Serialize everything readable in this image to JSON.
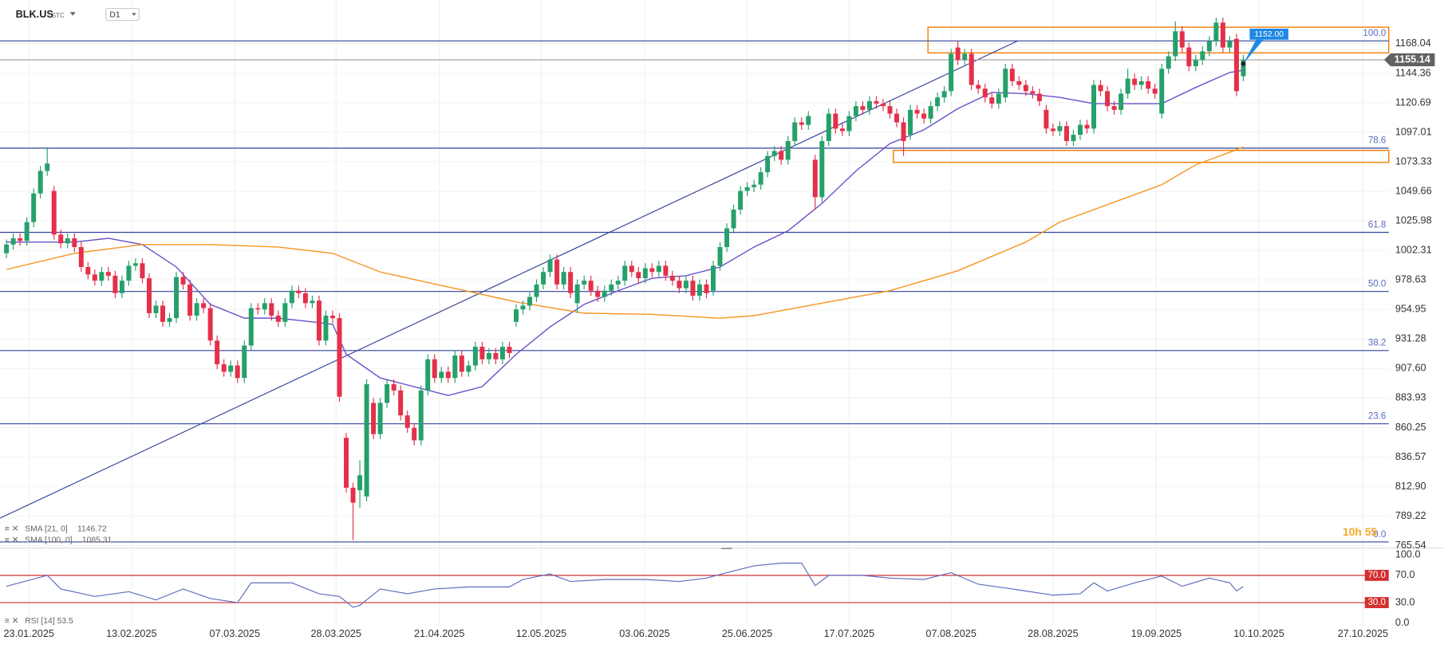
{
  "header": {
    "ticker": "BLK.US",
    "market": "STC",
    "interval": "D1",
    "countdown": "10h 55"
  },
  "chart_data": {
    "type": "candlestick",
    "xlim": [
      -0.95,
      203.4
    ],
    "xticks": [
      {
        "value": 3.3,
        "label": "23.01.2025"
      },
      {
        "value": 18.4,
        "label": "13.02.2025"
      },
      {
        "value": 33.6,
        "label": "07.03.2025"
      },
      {
        "value": 48.5,
        "label": "28.03.2025"
      },
      {
        "value": 63.7,
        "label": "21.04.2025"
      },
      {
        "value": 78.7,
        "label": "12.05.2025"
      },
      {
        "value": 93.9,
        "label": "03.06.2025"
      },
      {
        "value": 109,
        "label": "25.06.2025"
      },
      {
        "value": 124,
        "label": "17.07.2025"
      },
      {
        "value": 139,
        "label": "07.08.2025"
      },
      {
        "value": 154,
        "label": "28.08.2025"
      },
      {
        "value": 169.2,
        "label": "19.09.2025"
      },
      {
        "value": 184.3,
        "label": "10.10.2025"
      },
      {
        "value": 199.6,
        "label": "27.10.2025"
      }
    ],
    "ylim": [
      764,
      1203
    ],
    "yticks": [
      1168.04,
      1144.36,
      1120.69,
      1097.01,
      1073.33,
      1049.66,
      1025.98,
      1002.31,
      978.63,
      954.95,
      931.28,
      {
        "value": 907.6,
        "label": "907.60"
      },
      883.93,
      860.25,
      836.57,
      {
        "value": 812.9,
        "label": "812.90"
      },
      789.22,
      765.54
    ],
    "grid": true,
    "up_color": "#26a06b",
    "down_color": "#e5304a",
    "ohlc": [
      [
        1000,
        1011,
        996,
        1007
      ],
      [
        1007,
        1016,
        1003,
        1012
      ],
      [
        1012,
        1016,
        1006,
        1010
      ],
      [
        1010,
        1029,
        1006,
        1025
      ],
      [
        1025,
        1052,
        1021,
        1048
      ],
      [
        1048,
        1070,
        1044,
        1066
      ],
      [
        1066,
        1085,
        1062,
        1072
      ],
      [
        1050,
        1054,
        1011,
        1015
      ],
      [
        1015,
        1019,
        1004,
        1008
      ],
      [
        1008,
        1016,
        1004,
        1012
      ],
      [
        1012,
        1016,
        1001,
        1005
      ],
      [
        1005,
        1009,
        985,
        989
      ],
      [
        989,
        993,
        979,
        983
      ],
      [
        983,
        987,
        974,
        978
      ],
      [
        978,
        989,
        974,
        985
      ],
      [
        985,
        989,
        978,
        982
      ],
      [
        982,
        986,
        964,
        968
      ],
      [
        968,
        982,
        964,
        978
      ],
      [
        978,
        994,
        974,
        990
      ],
      [
        990,
        996,
        986,
        992
      ],
      [
        992,
        996,
        976,
        980
      ],
      [
        980,
        984,
        948,
        952
      ],
      [
        952,
        962,
        948,
        958
      ],
      [
        958,
        962,
        941,
        945
      ],
      [
        945,
        952,
        941,
        948
      ],
      [
        948,
        985,
        944,
        981
      ],
      [
        981,
        985,
        971,
        975
      ],
      [
        975,
        979,
        946,
        950
      ],
      [
        950,
        964,
        946,
        960
      ],
      [
        960,
        964,
        952,
        956
      ],
      [
        956,
        960,
        926,
        930
      ],
      [
        930,
        934,
        907,
        911
      ],
      [
        911,
        915,
        901,
        905
      ],
      [
        905,
        914,
        901,
        910
      ],
      [
        910,
        914,
        896,
        900
      ],
      [
        900,
        930,
        896,
        926
      ],
      [
        926,
        960,
        922,
        956
      ],
      [
        956,
        960,
        951,
        955
      ],
      [
        955,
        964,
        951,
        960
      ],
      [
        960,
        964,
        946,
        950
      ],
      [
        950,
        954,
        941,
        945
      ],
      [
        945,
        964,
        941,
        960
      ],
      [
        960,
        974,
        956,
        970
      ],
      [
        970,
        974,
        964,
        968
      ],
      [
        968,
        972,
        956,
        960
      ],
      [
        960,
        966,
        956,
        962
      ],
      [
        962,
        966,
        926,
        930
      ],
      [
        930,
        954,
        926,
        950
      ],
      [
        950,
        954,
        944,
        948
      ],
      [
        948,
        952,
        881,
        885
      ],
      [
        852,
        856,
        808,
        812
      ],
      [
        812,
        816,
        770,
        800
      ],
      [
        810,
        834,
        796,
        822
      ],
      [
        805,
        899,
        801,
        895
      ],
      [
        880,
        884,
        851,
        855
      ],
      [
        855,
        884,
        851,
        880
      ],
      [
        880,
        899,
        876,
        895
      ],
      [
        895,
        899,
        886,
        890
      ],
      [
        890,
        894,
        866,
        870
      ],
      [
        870,
        874,
        856,
        860
      ],
      [
        860,
        864,
        846,
        850
      ],
      [
        850,
        894,
        846,
        890
      ],
      [
        890,
        919,
        886,
        915
      ],
      [
        915,
        919,
        896,
        900
      ],
      [
        900,
        909,
        896,
        905
      ],
      [
        905,
        909,
        896,
        900
      ],
      [
        900,
        922,
        896,
        918
      ],
      [
        918,
        922,
        901,
        905
      ],
      [
        905,
        914,
        901,
        910
      ],
      [
        910,
        929,
        906,
        925
      ],
      [
        925,
        929,
        911,
        915
      ],
      [
        915,
        924,
        911,
        920
      ],
      [
        920,
        924,
        911,
        915
      ],
      [
        915,
        929,
        911,
        925
      ],
      [
        925,
        929,
        916,
        920
      ],
      [
        945,
        959,
        941,
        955
      ],
      [
        955,
        962,
        951,
        958
      ],
      [
        958,
        969,
        954,
        965
      ],
      [
        965,
        979,
        961,
        975
      ],
      [
        975,
        989,
        971,
        985
      ],
      [
        985,
        999,
        981,
        995
      ],
      [
        995,
        999,
        971,
        975
      ],
      [
        975,
        989,
        971,
        985
      ],
      [
        985,
        989,
        964,
        968
      ],
      [
        960,
        979,
        952,
        975
      ],
      [
        975,
        982,
        971,
        978
      ],
      [
        978,
        982,
        966,
        970
      ],
      [
        970,
        974,
        961,
        965
      ],
      [
        965,
        974,
        961,
        970
      ],
      [
        970,
        979,
        966,
        975
      ],
      [
        975,
        982,
        971,
        978
      ],
      [
        978,
        994,
        974,
        990
      ],
      [
        990,
        994,
        981,
        985
      ],
      [
        985,
        989,
        976,
        980
      ],
      [
        980,
        992,
        976,
        988
      ],
      [
        988,
        992,
        981,
        985
      ],
      [
        985,
        994,
        981,
        990
      ],
      [
        990,
        994,
        978,
        982
      ],
      [
        982,
        986,
        974,
        978
      ],
      [
        978,
        982,
        968,
        972
      ],
      [
        972,
        982,
        968,
        978
      ],
      [
        978,
        982,
        962,
        966
      ],
      [
        966,
        979,
        962,
        975
      ],
      [
        975,
        979,
        964,
        968
      ],
      [
        970,
        994,
        966,
        990
      ],
      [
        990,
        1009,
        986,
        1005
      ],
      [
        1005,
        1024,
        1001,
        1020
      ],
      [
        1020,
        1039,
        1016,
        1035
      ],
      [
        1035,
        1054,
        1031,
        1050
      ],
      [
        1050,
        1057,
        1046,
        1053
      ],
      [
        1053,
        1059,
        1049,
        1055
      ],
      [
        1055,
        1069,
        1051,
        1065
      ],
      [
        1065,
        1082,
        1061,
        1078
      ],
      [
        1078,
        1086,
        1074,
        1082
      ],
      [
        1082,
        1086,
        1071,
        1075
      ],
      [
        1075,
        1094,
        1071,
        1090
      ],
      [
        1090,
        1109,
        1086,
        1105
      ],
      [
        1105,
        1109,
        1099,
        1103
      ],
      [
        1103,
        1114,
        1099,
        1110
      ],
      [
        1075,
        1079,
        1035,
        1045
      ],
      [
        1045,
        1094,
        1041,
        1090
      ],
      [
        1090,
        1116,
        1086,
        1112
      ],
      [
        1112,
        1116,
        1096,
        1100
      ],
      [
        1100,
        1104,
        1094,
        1098
      ],
      [
        1098,
        1114,
        1094,
        1110
      ],
      [
        1110,
        1122,
        1106,
        1118
      ],
      [
        1118,
        1122,
        1111,
        1115
      ],
      [
        1115,
        1126,
        1111,
        1122
      ],
      [
        1122,
        1126,
        1116,
        1120
      ],
      [
        1120,
        1124,
        1114,
        1118
      ],
      [
        1118,
        1122,
        1108,
        1112
      ],
      [
        1112,
        1116,
        1101,
        1105
      ],
      [
        1105,
        1109,
        1078,
        1090
      ],
      [
        1095,
        1119,
        1091,
        1115
      ],
      [
        1115,
        1119,
        1108,
        1112
      ],
      [
        1112,
        1116,
        1104,
        1108
      ],
      [
        1108,
        1122,
        1104,
        1118
      ],
      [
        1118,
        1129,
        1114,
        1125
      ],
      [
        1125,
        1134,
        1121,
        1130
      ],
      [
        1130,
        1164,
        1126,
        1160
      ],
      [
        1165,
        1170,
        1151,
        1155
      ],
      [
        1155,
        1164,
        1151,
        1160
      ],
      [
        1160,
        1164,
        1131,
        1135
      ],
      [
        1135,
        1139,
        1128,
        1132
      ],
      [
        1132,
        1136,
        1121,
        1125
      ],
      [
        1125,
        1129,
        1116,
        1120
      ],
      [
        1120,
        1132,
        1116,
        1128
      ],
      [
        1125,
        1152,
        1121,
        1148
      ],
      [
        1148,
        1152,
        1134,
        1138
      ],
      [
        1138,
        1142,
        1131,
        1135
      ],
      [
        1135,
        1139,
        1126,
        1130
      ],
      [
        1130,
        1134,
        1124,
        1128
      ],
      [
        1128,
        1132,
        1118,
        1122
      ],
      [
        1115,
        1119,
        1096,
        1100
      ],
      [
        1100,
        1104,
        1094,
        1098
      ],
      [
        1098,
        1106,
        1094,
        1102
      ],
      [
        1102,
        1106,
        1086,
        1090
      ],
      [
        1090,
        1099,
        1086,
        1095
      ],
      [
        1095,
        1107,
        1091,
        1103
      ],
      [
        1103,
        1107,
        1096,
        1100
      ],
      [
        1100,
        1139,
        1096,
        1135
      ],
      [
        1135,
        1139,
        1126,
        1130
      ],
      [
        1130,
        1134,
        1114,
        1118
      ],
      [
        1118,
        1122,
        1111,
        1115
      ],
      [
        1115,
        1132,
        1111,
        1128
      ],
      [
        1128,
        1148,
        1124,
        1140
      ],
      [
        1140,
        1144,
        1131,
        1135
      ],
      [
        1135,
        1142,
        1131,
        1138
      ],
      [
        1138,
        1142,
        1128,
        1132
      ],
      [
        1132,
        1136,
        1124,
        1128
      ],
      [
        1112,
        1152,
        1108,
        1148
      ],
      [
        1148,
        1162,
        1144,
        1158
      ],
      [
        1158,
        1186,
        1154,
        1178
      ],
      [
        1178,
        1182,
        1161,
        1165
      ],
      [
        1165,
        1169,
        1146,
        1150
      ],
      [
        1150,
        1159,
        1146,
        1155
      ],
      [
        1155,
        1166,
        1151,
        1162
      ],
      [
        1162,
        1174,
        1158,
        1170
      ],
      [
        1170,
        1189,
        1166,
        1185
      ],
      [
        1185,
        1189,
        1161,
        1165
      ],
      [
        1165,
        1174,
        1161,
        1170
      ],
      [
        1172,
        1176,
        1126,
        1130
      ],
      [
        1142,
        1159,
        1138,
        1155
      ]
    ],
    "series": [
      {
        "name": "SMA [21, 0]",
        "color": "#6a4fc9",
        "x": [
          0,
          10,
          15,
          20,
          25,
          30,
          35,
          40,
          45,
          48,
          50,
          55,
          60,
          65,
          70,
          75,
          80,
          85,
          90,
          95,
          100,
          105,
          110,
          115,
          120,
          125,
          130,
          135,
          140,
          145,
          150,
          155,
          160,
          165,
          170,
          175,
          180,
          182
        ],
        "values": [
          1009,
          1009,
          1012,
          1007,
          989,
          959,
          948,
          948,
          945,
          943,
          919,
          900,
          893,
          886,
          893,
          919,
          941,
          959,
          970,
          980,
          982,
          989,
          1005,
          1018,
          1040,
          1066,
          1088,
          1099,
          1116,
          1129,
          1128,
          1125,
          1120,
          1120,
          1120,
          1133,
          1145,
          1146.72
        ]
      },
      {
        "name": "SMA [100, 0]",
        "color": "#f7931e",
        "x": [
          0,
          10,
          20,
          30,
          40,
          48,
          55,
          65,
          75,
          85,
          95,
          105,
          110,
          120,
          130,
          140,
          150,
          155,
          160,
          170,
          175,
          180,
          182
        ],
        "values": [
          987,
          1000,
          1007,
          1007,
          1005,
          1000,
          985,
          973,
          961,
          952,
          951,
          948,
          950,
          960,
          970,
          986,
          1009,
          1025,
          1035,
          1055,
          1071,
          1081,
          1085.31
        ]
      }
    ],
    "fib_levels": [
      {
        "label": "100.0",
        "price": 1170.3
      },
      {
        "label": "78.6",
        "price": 1084.3
      },
      {
        "label": "61.8",
        "price": 1016.8
      },
      {
        "label": "50.0",
        "price": 969.4
      },
      {
        "label": "38.2",
        "price": 922
      },
      {
        "label": "23.6",
        "price": 863.3
      },
      {
        "label": "0.0",
        "price": 768.5
      }
    ],
    "fib_color": "#33429b",
    "trendline": {
      "x": [
        -0.95,
        148.8
      ],
      "values": [
        787.6,
        1170.3
      ]
    },
    "zones": [
      {
        "x": [
          135.6,
          203.4
        ],
        "y": [
          1160.7,
          1181.3
        ]
      },
      {
        "x": [
          130.5,
          203.4
        ],
        "y": [
          1072.9,
          1082.5
        ]
      }
    ],
    "zone_color": "#f57c00",
    "last_price": 1155.14,
    "alert": {
      "value": 1152,
      "label": "1152.00",
      "x": 182
    },
    "rsi": {
      "name": "RSI [14]",
      "color": "#5c6bc0",
      "ylim": [
        0,
        100
      ],
      "yticks": [
        {
          "value": 100,
          "label": "100.0"
        },
        {
          "value": 70,
          "label": "70.0"
        },
        {
          "value": 30,
          "label": "30.0"
        },
        {
          "value": 0,
          "label": "0.0"
        }
      ],
      "levels": [
        {
          "value": 70,
          "label": "70.0"
        },
        {
          "value": 30,
          "label": "30.0"
        }
      ],
      "level_color": "#d32f2f",
      "x": [
        0,
        6,
        8,
        13,
        18,
        22,
        26,
        30,
        34,
        36,
        42,
        46,
        49,
        51,
        52,
        55,
        59,
        63,
        68,
        74,
        76,
        80,
        83,
        88,
        94,
        99,
        103,
        106,
        110,
        114,
        117,
        119,
        121,
        126,
        130,
        135,
        139,
        143,
        148,
        154,
        158,
        160,
        162,
        166,
        170,
        173,
        177,
        180,
        181,
        182
      ],
      "values": [
        54,
        70,
        50,
        39,
        46,
        34,
        50,
        36,
        30,
        59,
        59,
        43,
        39,
        23,
        26,
        50,
        43,
        50,
        53,
        53,
        64,
        72,
        61,
        64,
        64,
        61,
        66,
        74,
        84,
        88,
        88,
        55,
        70,
        70,
        66,
        64,
        74,
        57,
        50,
        41,
        43,
        59,
        47,
        59,
        69,
        54,
        66,
        59,
        47,
        53.5
      ]
    }
  }
}
